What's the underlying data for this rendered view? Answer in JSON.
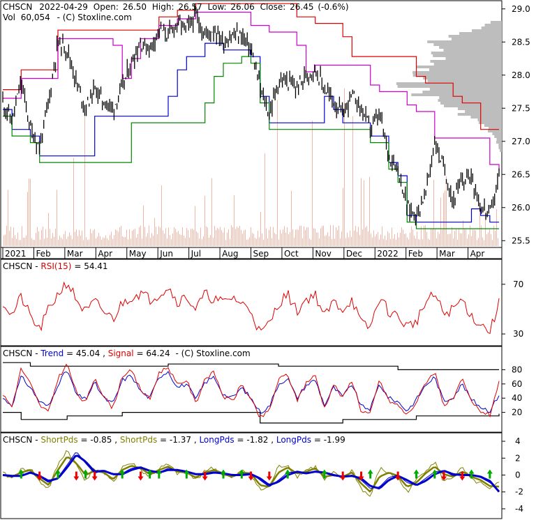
{
  "header": {
    "symbol": "CHSCN",
    "date": "2022-04-29",
    "open_label": "Open:",
    "open": "26.50",
    "high_label": "High:",
    "high": "26.57",
    "low_label": "Low:",
    "low": "26.06",
    "close_label": "Close:",
    "close": "26.45",
    "change": "(-0.6%)",
    "volume_label": "Vol",
    "volume": "60,054",
    "copyright": "- (C) Stoxline.com"
  },
  "colors": {
    "price": "#000000",
    "volume": "#f4b6a6",
    "profile": "#bdbdbd",
    "red": "#dd0000",
    "magenta": "#cc00cc",
    "blue": "#0000cc",
    "green": "#008800",
    "olive": "#808000",
    "arrow_up": "#00aa00",
    "arrow_down": "#ee0000",
    "grid": "#c8c8c8"
  },
  "chart_data": [
    {
      "type": "line",
      "name": "price",
      "x_labels": [
        "2021",
        "Feb",
        "Mar",
        "Apr",
        "May",
        "Jun",
        "Jul",
        "Aug",
        "Sep",
        "Oct",
        "Nov",
        "Dec",
        "2022",
        "Feb",
        "Mar",
        "Apr"
      ],
      "y_ticks": [
        "29.0",
        "28.5",
        "28.0",
        "27.5",
        "27.0",
        "26.5",
        "26.0",
        "25.5"
      ],
      "ylim": [
        25.45,
        29.05
      ],
      "close_approx": [
        27.6,
        27.3,
        27.9,
        27.2,
        26.9,
        27.6,
        28.5,
        28.4,
        27.9,
        27.5,
        27.8,
        27.6,
        27.5,
        27.8,
        28.2,
        28.5,
        28.4,
        28.7,
        28.6,
        28.8,
        28.7,
        28.9,
        28.6,
        28.7,
        28.5,
        28.6,
        28.6,
        28.4,
        27.8,
        27.4,
        27.9,
        27.9,
        27.8,
        28.0,
        28.1,
        27.8,
        27.6,
        27.4,
        27.7,
        27.5,
        27.2,
        27.4,
        26.8,
        26.6,
        26.0,
        25.9,
        26.2,
        27.0,
        26.6,
        26.1,
        26.4,
        26.5,
        26.0,
        25.9,
        26.45
      ],
      "series": [
        {
          "name": "Open",
          "values": [
            26.5
          ]
        },
        {
          "name": "High",
          "values": [
            26.57
          ]
        },
        {
          "name": "Low",
          "values": [
            26.06
          ]
        },
        {
          "name": "Close",
          "values": [
            26.45
          ]
        }
      ]
    },
    {
      "type": "line",
      "name": "rsi",
      "label": "RSI(15)",
      "value": "54.41",
      "y_ticks": [
        "70",
        "30"
      ],
      "ylim": [
        25,
        80
      ],
      "values": [
        56,
        45,
        60,
        44,
        33,
        50,
        62,
        72,
        58,
        47,
        56,
        48,
        42,
        55,
        60,
        63,
        58,
        62,
        68,
        56,
        60,
        50,
        62,
        58,
        55,
        60,
        54,
        50,
        30,
        38,
        55,
        62,
        48,
        58,
        62,
        44,
        56,
        50,
        58,
        38,
        35,
        60,
        48,
        44,
        36,
        40,
        55,
        62,
        46,
        50,
        58,
        44,
        38,
        32,
        54.41
      ]
    },
    {
      "type": "line",
      "name": "trend",
      "label_trend": "Trend",
      "trend": "45.04",
      "label_signal": "Signal",
      "signal": "64.24",
      "y_ticks": [
        "80",
        "60",
        "40",
        "20"
      ],
      "ylim": [
        0,
        100
      ],
      "series": [
        {
          "name": "Trend",
          "values": [
            40,
            30,
            70,
            55,
            35,
            28,
            60,
            80,
            45,
            38,
            62,
            40,
            32,
            65,
            72,
            50,
            40,
            70,
            78,
            55,
            60,
            38,
            62,
            70,
            45,
            40,
            55,
            40,
            20,
            28,
            60,
            68,
            40,
            58,
            66,
            30,
            55,
            42,
            60,
            28,
            25,
            60,
            40,
            35,
            22,
            38,
            58,
            70,
            35,
            42,
            60,
            38,
            28,
            22,
            45.04
          ]
        },
        {
          "name": "Signal",
          "values": [
            45,
            28,
            82,
            60,
            30,
            20,
            68,
            88,
            48,
            32,
            70,
            42,
            26,
            72,
            78,
            52,
            38,
            76,
            84,
            58,
            66,
            32,
            68,
            76,
            42,
            36,
            60,
            38,
            12,
            22,
            66,
            74,
            36,
            62,
            72,
            26,
            60,
            40,
            66,
            22,
            18,
            66,
            36,
            30,
            16,
            34,
            62,
            78,
            30,
            38,
            66,
            34,
            22,
            16,
            64.24
          ]
        }
      ],
      "bands": [
        {
          "name": "upper",
          "values": [
            90,
            90,
            90,
            85,
            85,
            85,
            85,
            85,
            85,
            85,
            85,
            85,
            85,
            85,
            85,
            85,
            85,
            85,
            88,
            88,
            88,
            88,
            88,
            88,
            88,
            88,
            88,
            88,
            88,
            88,
            85,
            85,
            85,
            85,
            85,
            85,
            85,
            85,
            85,
            85,
            85,
            85,
            85,
            80,
            80,
            80,
            80,
            80,
            80,
            80,
            80,
            80,
            80,
            80,
            80
          ]
        },
        {
          "name": "lower",
          "values": [
            20,
            20,
            10,
            10,
            10,
            10,
            10,
            15,
            15,
            15,
            15,
            15,
            15,
            20,
            20,
            20,
            20,
            20,
            20,
            20,
            20,
            20,
            20,
            20,
            20,
            20,
            20,
            20,
            5,
            5,
            5,
            5,
            5,
            5,
            5,
            5,
            5,
            10,
            10,
            10,
            10,
            10,
            10,
            10,
            10,
            15,
            15,
            15,
            15,
            15,
            15,
            15,
            15,
            15,
            18
          ]
        }
      ]
    },
    {
      "type": "line",
      "name": "pds",
      "labels": {
        "short1_label": "ShortPds",
        "short1": "-0.85",
        "short2_label": "ShortPds",
        "short2": "-1.37",
        "long1_label": "LongPds",
        "long1": "-1.82",
        "long2_label": "LongPds",
        "long2": "-1.99"
      },
      "y_ticks": [
        "4",
        "2",
        "0",
        "-2",
        "-4"
      ],
      "ylim": [
        -4.5,
        4.5
      ],
      "series": [
        {
          "name": "ShortPds",
          "values": [
            0.2,
            -0.4,
            0.6,
            0.8,
            -0.8,
            -1.6,
            1.2,
            3.0,
            1.2,
            -0.6,
            0.8,
            0.2,
            -0.9,
            1.0,
            1.4,
            0.6,
            -0.2,
            0.8,
            1.2,
            0.2,
            0.4,
            -0.6,
            0.6,
            0.8,
            0.0,
            -0.4,
            0.5,
            0.1,
            -1.8,
            -1.4,
            1.0,
            1.2,
            -0.2,
            0.6,
            1.0,
            -0.6,
            0.2,
            -0.4,
            0.6,
            -1.6,
            -2.6,
            0.8,
            0.2,
            -0.4,
            -2.0,
            -0.6,
            0.6,
            1.6,
            -0.8,
            -0.2,
            0.8,
            -0.6,
            -1.0,
            -1.8,
            -0.85
          ]
        },
        {
          "name": "ShortPds",
          "values": [
            0.0,
            -0.2,
            0.3,
            0.6,
            -0.4,
            -1.2,
            0.6,
            2.2,
            1.4,
            0.0,
            0.5,
            0.3,
            -0.5,
            0.6,
            1.1,
            0.8,
            0.1,
            0.6,
            1.0,
            0.4,
            0.3,
            -0.3,
            0.3,
            0.6,
            0.2,
            -0.2,
            0.3,
            0.2,
            -1.2,
            -1.4,
            0.3,
            0.9,
            0.2,
            0.4,
            0.8,
            -0.2,
            0.0,
            -0.2,
            0.3,
            -1.0,
            -2.0,
            -0.2,
            0.3,
            -0.1,
            -1.4,
            -0.9,
            0.2,
            1.0,
            0.1,
            -0.2,
            0.4,
            -0.2,
            -0.6,
            -1.3,
            -1.37
          ]
        },
        {
          "name": "LongPds",
          "values": [
            0.0,
            -0.2,
            -0.1,
            0.4,
            -0.2,
            -0.9,
            -0.3,
            1.2,
            2.8,
            1.4,
            0.2,
            0.6,
            0.0,
            0.2,
            0.8,
            1.0,
            0.4,
            0.3,
            0.8,
            0.6,
            0.4,
            0.0,
            0.2,
            0.4,
            0.2,
            0.0,
            0.1,
            0.2,
            -0.6,
            -1.4,
            -0.6,
            0.3,
            0.4,
            0.2,
            0.5,
            0.2,
            -0.1,
            -0.2,
            0.0,
            -0.6,
            -1.6,
            -1.4,
            -0.3,
            0.0,
            -0.9,
            -1.2,
            -0.4,
            0.4,
            0.5,
            -0.1,
            0.1,
            0.0,
            -0.3,
            -0.9,
            -1.82
          ]
        },
        {
          "name": "LongPds",
          "values": [
            0.0,
            -0.1,
            -0.1,
            0.3,
            -0.1,
            -0.7,
            -0.4,
            0.9,
            2.4,
            1.6,
            0.4,
            0.5,
            0.1,
            0.1,
            0.6,
            0.9,
            0.5,
            0.3,
            0.6,
            0.6,
            0.4,
            0.1,
            0.1,
            0.3,
            0.2,
            0.0,
            0.0,
            0.1,
            -0.4,
            -1.2,
            -0.8,
            0.0,
            0.4,
            0.2,
            0.4,
            0.3,
            0.0,
            -0.2,
            -0.1,
            -0.4,
            -1.3,
            -1.6,
            -0.6,
            -0.1,
            -0.6,
            -1.2,
            -0.7,
            0.1,
            0.5,
            0.1,
            0.0,
            0.0,
            -0.2,
            -0.7,
            -1.99
          ]
        }
      ],
      "signals_up": [
        2,
        6,
        9,
        13,
        16,
        17,
        20,
        24,
        26,
        31,
        35,
        40,
        45,
        47,
        51,
        53
      ],
      "signals_down": [
        4,
        8,
        10,
        15,
        22,
        27,
        29,
        37,
        39,
        43,
        48,
        50
      ]
    }
  ]
}
